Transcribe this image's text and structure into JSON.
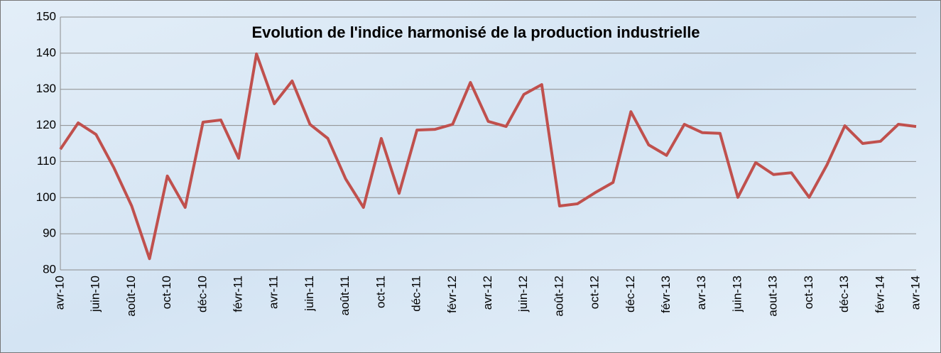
{
  "chart_data": {
    "type": "line",
    "title": "Evolution de l'indice harmonisé de la production industrielle",
    "categories": [
      "avr-10",
      null,
      "juin-10",
      null,
      "août-10",
      null,
      "oct-10",
      null,
      "déc-10",
      null,
      "févr-11",
      null,
      "avr-11",
      null,
      "juin-11",
      null,
      "août-11",
      null,
      "oct-11",
      null,
      "déc-11",
      null,
      "févr-12",
      null,
      "avr-12",
      null,
      "juin-12",
      null,
      "août-12",
      null,
      "oct-12",
      null,
      "déc-12",
      null,
      "févr-13",
      null,
      "avr-13",
      null,
      "juin-13",
      null,
      "aout-13",
      null,
      "oct-13",
      null,
      "déc-13",
      null,
      "févr-14",
      null,
      "avr-14"
    ],
    "values": [
      113.4,
      120.7,
      117.5,
      108.3,
      97.7,
      83.1,
      106,
      97.3,
      120.9,
      121.5,
      110.9,
      139.8,
      126,
      132.3,
      120.3,
      116.4,
      105.2,
      97.3,
      116.4,
      101.2,
      118.7,
      118.9,
      120.3,
      131.9,
      121.1,
      119.7,
      128.6,
      131.3,
      97.7,
      98.3,
      101.4,
      104.2,
      123.8,
      114.6,
      111.7,
      120.3,
      118,
      117.8,
      100.1,
      109.7,
      106.4,
      106.9,
      100.1,
      109.1,
      119.9,
      115,
      115.6,
      120.3,
      119.7
    ],
    "color": "#c0504d",
    "ylim": [
      80,
      150
    ],
    "yticks": [
      80,
      90,
      100,
      110,
      120,
      130,
      140,
      150
    ],
    "grid": true
  }
}
